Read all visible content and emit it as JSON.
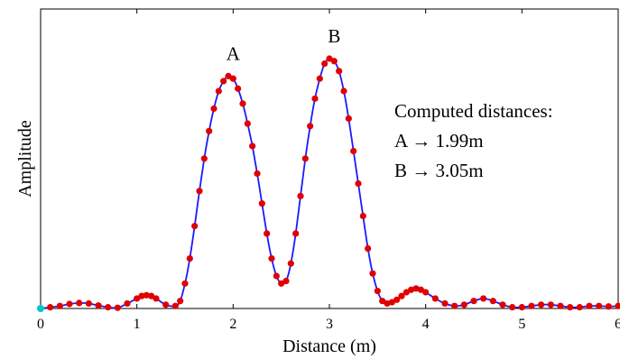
{
  "chart_data": {
    "type": "line",
    "title": "",
    "xlabel": "Distance (m)",
    "ylabel": "Amplitude",
    "xlim": [
      0,
      6
    ],
    "ylim": [
      0,
      1.0
    ],
    "xticks": [
      "0",
      "1",
      "2",
      "3",
      "4",
      "5",
      "6"
    ],
    "grid": false,
    "line_color": "#1a1aff",
    "marker_color": "#e00000",
    "origin_marker_color": "#00c8c8",
    "annotations": [
      {
        "text": "A",
        "x": 2.0,
        "y": 0.93
      },
      {
        "text": "B",
        "x": 3.05,
        "y": 1.0
      }
    ],
    "note_lines": [
      "Computed distances:",
      "A → 1.99m",
      "B → 3.05m"
    ],
    "series": [
      {
        "x": [
          0.0,
          0.1,
          0.2,
          0.3,
          0.4,
          0.5,
          0.6,
          0.7,
          0.8,
          0.9,
          1.0,
          1.05,
          1.1,
          1.15,
          1.2,
          1.3,
          1.4,
          1.45,
          1.5,
          1.55,
          1.6,
          1.65,
          1.7,
          1.75,
          1.8,
          1.85,
          1.9,
          1.95,
          2.0,
          2.05,
          2.1,
          2.15,
          2.2,
          2.25,
          2.3,
          2.35,
          2.4,
          2.45,
          2.5,
          2.55,
          2.6,
          2.65,
          2.7,
          2.75,
          2.8,
          2.85,
          2.9,
          2.95,
          3.0,
          3.05,
          3.1,
          3.15,
          3.2,
          3.25,
          3.3,
          3.35,
          3.4,
          3.45,
          3.5,
          3.55,
          3.6,
          3.65,
          3.7,
          3.75,
          3.8,
          3.85,
          3.9,
          3.95,
          4.0,
          4.1,
          4.2,
          4.3,
          4.4,
          4.5,
          4.6,
          4.7,
          4.8,
          4.9,
          5.0,
          5.1,
          5.2,
          5.3,
          5.4,
          5.5,
          5.6,
          5.7,
          5.8,
          5.9,
          6.0
        ],
        "y": [
          0.0,
          0.005,
          0.01,
          0.018,
          0.022,
          0.02,
          0.012,
          0.005,
          0.003,
          0.02,
          0.04,
          0.05,
          0.053,
          0.05,
          0.04,
          0.015,
          0.01,
          0.03,
          0.1,
          0.2,
          0.33,
          0.47,
          0.6,
          0.71,
          0.8,
          0.87,
          0.91,
          0.93,
          0.92,
          0.88,
          0.82,
          0.74,
          0.65,
          0.54,
          0.42,
          0.3,
          0.2,
          0.13,
          0.1,
          0.11,
          0.18,
          0.3,
          0.45,
          0.6,
          0.73,
          0.84,
          0.92,
          0.98,
          1.0,
          0.99,
          0.95,
          0.87,
          0.76,
          0.63,
          0.5,
          0.37,
          0.24,
          0.14,
          0.07,
          0.03,
          0.02,
          0.025,
          0.035,
          0.05,
          0.065,
          0.075,
          0.08,
          0.075,
          0.065,
          0.04,
          0.02,
          0.01,
          0.015,
          0.03,
          0.04,
          0.03,
          0.015,
          0.005,
          0.005,
          0.01,
          0.015,
          0.015,
          0.01,
          0.005,
          0.005,
          0.01,
          0.01,
          0.008,
          0.01
        ]
      }
    ]
  }
}
